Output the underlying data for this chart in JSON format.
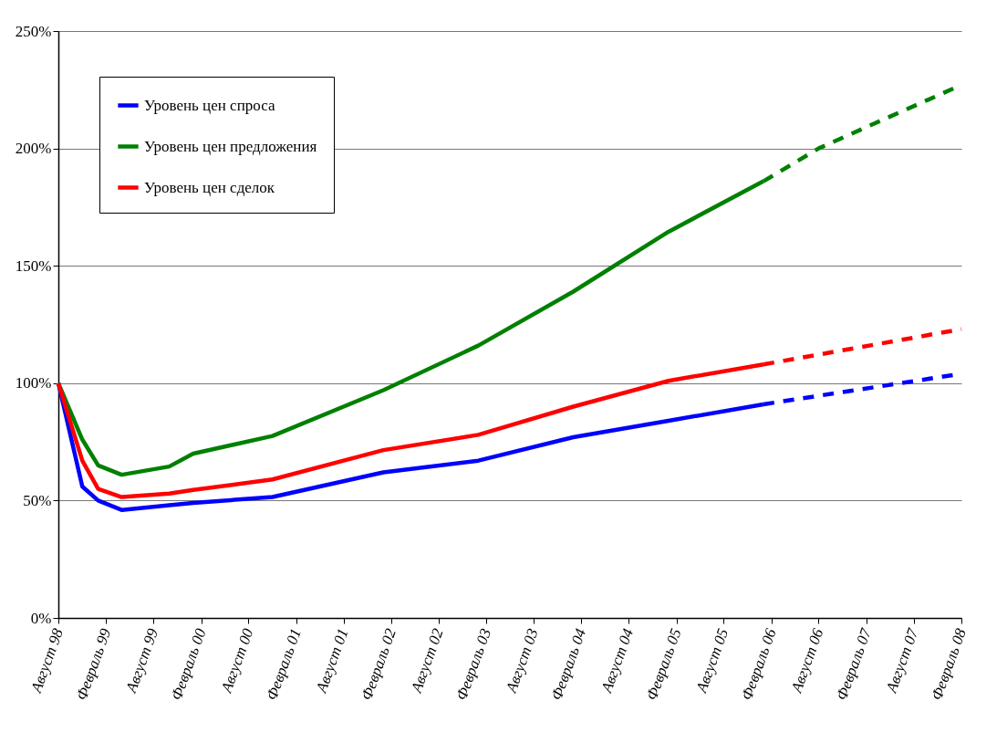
{
  "chart_data": {
    "type": "line",
    "line_style": "solid",
    "grid": "y",
    "legend": "top left",
    "ylim": [
      0,
      250
    ],
    "yticks": [
      {
        "value": 0,
        "label": "0%"
      },
      {
        "value": 50,
        "label": "50%"
      },
      {
        "value": 100,
        "label": "100%"
      },
      {
        "value": 150,
        "label": "150%"
      },
      {
        "value": 200,
        "label": "200%"
      },
      {
        "value": 250,
        "label": "250%"
      }
    ],
    "xlim": [
      "1998-08",
      "2008-02"
    ],
    "xticks": [
      {
        "value": "1998-08",
        "label": "Август 98"
      },
      {
        "value": "1999-02",
        "label": "Февраль 99"
      },
      {
        "value": "1999-08",
        "label": "Август 99"
      },
      {
        "value": "2000-02",
        "label": "Февраль 00"
      },
      {
        "value": "2000-08",
        "label": "Август 00"
      },
      {
        "value": "2001-02",
        "label": "Февраль 01"
      },
      {
        "value": "2001-08",
        "label": "Август 01"
      },
      {
        "value": "2002-02",
        "label": "Февраль 02"
      },
      {
        "value": "2002-08",
        "label": "Август 02"
      },
      {
        "value": "2003-02",
        "label": "Февраль 03"
      },
      {
        "value": "2003-08",
        "label": "Август 03"
      },
      {
        "value": "2004-02",
        "label": "Февраль 04"
      },
      {
        "value": "2004-08",
        "label": "Август 04"
      },
      {
        "value": "2005-02",
        "label": "Февраль 05"
      },
      {
        "value": "2005-08",
        "label": "Август 05"
      },
      {
        "value": "2006-02",
        "label": "Февраль 06"
      },
      {
        "value": "2006-08",
        "label": "Август 06"
      },
      {
        "value": "2007-02",
        "label": "Февраль 07"
      },
      {
        "value": "2007-08",
        "label": "Август 07"
      },
      {
        "value": "2008-02",
        "label": "Февраль 08"
      }
    ],
    "series": [
      {
        "name": "Уровень цен спроса",
        "color": "#0000ff",
        "x": [
          "1998-08",
          "1998-11",
          "1999-01",
          "1999-04",
          "1999-10",
          "2000-01",
          "2000-11",
          "2002-01",
          "2003-01",
          "2004-01",
          "2005-01",
          "2006-01"
        ],
        "values": [
          100,
          56,
          50,
          46,
          48,
          49,
          51.5,
          62,
          67,
          77,
          84,
          91
        ]
      },
      {
        "name": "Уровень цен предложения",
        "color": "#008000",
        "x": [
          "1998-08",
          "1998-11",
          "1999-01",
          "1999-04",
          "1999-10",
          "2000-01",
          "2000-11",
          "2002-01",
          "2003-01",
          "2004-01",
          "2005-01",
          "2006-01"
        ],
        "values": [
          100,
          76,
          65,
          61,
          64.5,
          70,
          77.5,
          97,
          116,
          139,
          164.5,
          186
        ]
      },
      {
        "name": "Уровень цен сделок",
        "color": "#ff0000",
        "x": [
          "1998-08",
          "1998-11",
          "1999-01",
          "1999-04",
          "1999-10",
          "2000-01",
          "2000-11",
          "2002-01",
          "2003-01",
          "2004-01",
          "2005-01",
          "2006-01"
        ],
        "values": [
          100,
          67,
          55,
          51.5,
          53,
          54.5,
          59,
          71.5,
          78,
          90,
          101,
          108
        ]
      },
      {
        "color": "#0000ff",
        "line_style": "dashed",
        "x": [
          "2006-01",
          "2008-02"
        ],
        "values": [
          91,
          104
        ]
      },
      {
        "color": "#008000",
        "line_style": "dashed",
        "x": [
          "2006-01",
          "2006-08",
          "2007-04",
          "2008-02"
        ],
        "values": [
          186,
          200,
          212,
          227
        ]
      },
      {
        "color": "#ff0000",
        "line_style": "dashed",
        "x": [
          "2006-01",
          "2008-02"
        ],
        "values": [
          108,
          123
        ]
      }
    ]
  }
}
